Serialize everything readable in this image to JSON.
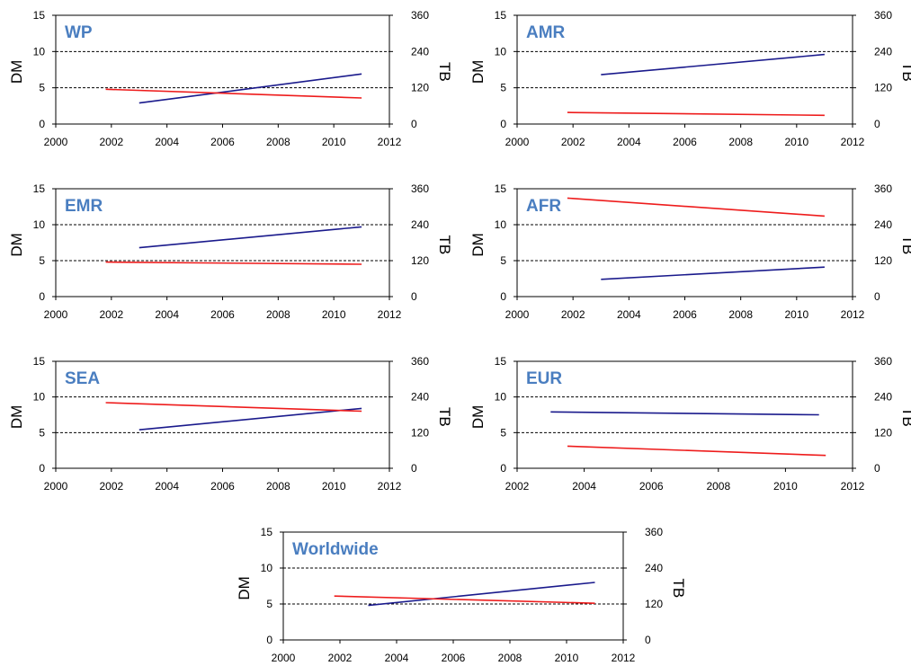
{
  "chart_data": [
    {
      "type": "line",
      "title": "WP",
      "xlabel": "",
      "ylabel": "DM",
      "y2label": "TB",
      "xlim": [
        2000,
        2012
      ],
      "xticks": [
        "2000",
        "2002",
        "2004",
        "2006",
        "2008",
        "2010",
        "2012"
      ],
      "ylim": [
        0,
        15
      ],
      "yticks": [
        "0",
        "5",
        "10",
        "15"
      ],
      "y2lim": [
        0,
        360
      ],
      "y2ticks": [
        "0",
        "120",
        "240",
        "360"
      ],
      "gridlines_y": [
        5,
        10
      ],
      "grid": "dashed horizontal at 5 and 10",
      "series": [
        {
          "axis": "left",
          "color": "#1a1a8c",
          "x": [
            2003,
            2011
          ],
          "y": [
            2.9,
            6.9
          ]
        },
        {
          "axis": "left",
          "color": "#ee1c1c",
          "x": [
            2001.8,
            2011
          ],
          "y": [
            4.8,
            3.6
          ]
        }
      ]
    },
    {
      "type": "line",
      "title": "AMR",
      "xlabel": "",
      "ylabel": "DM",
      "y2label": "TB",
      "xlim": [
        2000,
        2012
      ],
      "xticks": [
        "2000",
        "2002",
        "2004",
        "2006",
        "2008",
        "2010",
        "2012"
      ],
      "ylim": [
        0,
        15
      ],
      "yticks": [
        "0",
        "5",
        "10",
        "15"
      ],
      "y2lim": [
        0,
        360
      ],
      "y2ticks": [
        "0",
        "120",
        "240",
        "360"
      ],
      "gridlines_y": [
        5,
        10
      ],
      "grid": "dashed horizontal at 5 and 10",
      "series": [
        {
          "axis": "left",
          "color": "#1a1a8c",
          "x": [
            2003,
            2011
          ],
          "y": [
            6.8,
            9.6
          ]
        },
        {
          "axis": "left",
          "color": "#ee1c1c",
          "x": [
            2001.8,
            2011
          ],
          "y": [
            1.6,
            1.2
          ]
        }
      ]
    },
    {
      "type": "line",
      "title": "EMR",
      "xlabel": "",
      "ylabel": "DM",
      "y2label": "TB",
      "xlim": [
        2000,
        2012
      ],
      "xticks": [
        "2000",
        "2002",
        "2004",
        "2006",
        "2008",
        "2010",
        "2012"
      ],
      "ylim": [
        0,
        15
      ],
      "yticks": [
        "0",
        "5",
        "10",
        "15"
      ],
      "y2lim": [
        0,
        360
      ],
      "y2ticks": [
        "0",
        "120",
        "240",
        "360"
      ],
      "gridlines_y": [
        5,
        10
      ],
      "grid": "dashed horizontal at 5 and 10",
      "series": [
        {
          "axis": "left",
          "color": "#1a1a8c",
          "x": [
            2003,
            2011
          ],
          "y": [
            6.8,
            9.7
          ]
        },
        {
          "axis": "left",
          "color": "#ee1c1c",
          "x": [
            2001.8,
            2011
          ],
          "y": [
            4.8,
            4.5
          ]
        }
      ]
    },
    {
      "type": "line",
      "title": "AFR",
      "xlabel": "",
      "ylabel": "DM",
      "y2label": "TB",
      "xlim": [
        2000,
        2012
      ],
      "xticks": [
        "2000",
        "2002",
        "2004",
        "2006",
        "2008",
        "2010",
        "2012"
      ],
      "ylim": [
        0,
        15
      ],
      "yticks": [
        "0",
        "5",
        "10",
        "15"
      ],
      "y2lim": [
        0,
        360
      ],
      "y2ticks": [
        "0",
        "120",
        "240",
        "360"
      ],
      "gridlines_y": [
        5,
        10
      ],
      "grid": "dashed horizontal at 5 and 10",
      "series": [
        {
          "axis": "left",
          "color": "#1a1a8c",
          "x": [
            2003,
            2011
          ],
          "y": [
            2.4,
            4.1
          ]
        },
        {
          "axis": "left",
          "color": "#ee1c1c",
          "x": [
            2001.8,
            2011
          ],
          "y": [
            13.7,
            11.2
          ]
        }
      ]
    },
    {
      "type": "line",
      "title": "SEA",
      "xlabel": "",
      "ylabel": "DM",
      "y2label": "TB",
      "xlim": [
        2000,
        2012
      ],
      "xticks": [
        "2000",
        "2002",
        "2004",
        "2006",
        "2008",
        "2010",
        "2012"
      ],
      "ylim": [
        0,
        15
      ],
      "yticks": [
        "0",
        "5",
        "10",
        "15"
      ],
      "y2lim": [
        0,
        360
      ],
      "y2ticks": [
        "0",
        "120",
        "240",
        "360"
      ],
      "gridlines_y": [
        5,
        10
      ],
      "grid": "dashed horizontal at 5 and 10",
      "series": [
        {
          "axis": "left",
          "color": "#1a1a8c",
          "x": [
            2003,
            2011
          ],
          "y": [
            5.4,
            8.4
          ]
        },
        {
          "axis": "left",
          "color": "#ee1c1c",
          "x": [
            2001.8,
            2011
          ],
          "y": [
            9.2,
            8.0
          ]
        }
      ]
    },
    {
      "type": "line",
      "title": "EUR",
      "xlabel": "",
      "ylabel": "DM",
      "y2label": "TB",
      "xlim": [
        2002,
        2012
      ],
      "xticks": [
        "2002",
        "2004",
        "2006",
        "2008",
        "2010",
        "2012"
      ],
      "ylim": [
        0,
        15
      ],
      "yticks": [
        "0",
        "5",
        "10",
        "15"
      ],
      "y2lim": [
        0,
        360
      ],
      "y2ticks": [
        "0",
        "120",
        "240",
        "360"
      ],
      "gridlines_y": [
        5,
        10
      ],
      "grid": "dashed horizontal at 5 and 10",
      "series": [
        {
          "axis": "left",
          "color": "#1a1a8c",
          "x": [
            2003,
            2011
          ],
          "y": [
            7.9,
            7.5
          ]
        },
        {
          "axis": "left",
          "color": "#ee1c1c",
          "x": [
            2003.5,
            2011.2
          ],
          "y": [
            3.1,
            1.8
          ]
        }
      ]
    },
    {
      "type": "line",
      "title": "Worldwide",
      "xlabel": "",
      "ylabel": "DM",
      "y2label": "TB",
      "xlim": [
        2000,
        2012
      ],
      "xticks": [
        "2000",
        "2002",
        "2004",
        "2006",
        "2008",
        "2010",
        "2012"
      ],
      "ylim": [
        0,
        15
      ],
      "yticks": [
        "0",
        "5",
        "10",
        "15"
      ],
      "y2lim": [
        0,
        360
      ],
      "y2ticks": [
        "0",
        "120",
        "240",
        "360"
      ],
      "gridlines_y": [
        5,
        10
      ],
      "grid": "dashed horizontal at 5 and 10",
      "series": [
        {
          "axis": "left",
          "color": "#1a1a8c",
          "x": [
            2003,
            2011
          ],
          "y": [
            4.8,
            8.0
          ]
        },
        {
          "axis": "left",
          "color": "#ee1c1c",
          "x": [
            2001.8,
            2011
          ],
          "y": [
            6.1,
            5.1
          ]
        }
      ]
    }
  ]
}
